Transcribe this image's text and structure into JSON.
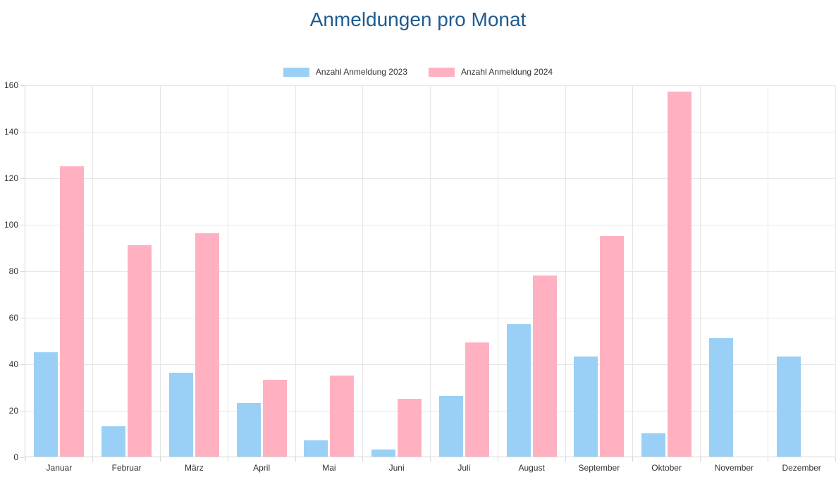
{
  "title": "Anmeldungen pro Monat",
  "title_color": "#1d5c90",
  "legend": {
    "items": [
      {
        "label": "Anzahl Anmeldung 2023",
        "color": "#9AD0F5"
      },
      {
        "label": "Anzahl Anmeldung 2024",
        "color": "#FFB1C1"
      }
    ],
    "position": "top"
  },
  "chart_data": {
    "type": "bar",
    "title": "Anmeldungen pro Monat",
    "categories": [
      "Januar",
      "Februar",
      "März",
      "April",
      "Mai",
      "Juni",
      "Juli",
      "August",
      "September",
      "Oktober",
      "November",
      "Dezember"
    ],
    "series": [
      {
        "name": "Anzahl Anmeldung 2023",
        "color": "#9AD0F5",
        "values": [
          45,
          13,
          36,
          23,
          7,
          3,
          26,
          57,
          43,
          10,
          51,
          43
        ]
      },
      {
        "name": "Anzahl Anmeldung 2024",
        "color": "#FFB1C1",
        "values": [
          125,
          91,
          96,
          33,
          35,
          25,
          49,
          78,
          95,
          157,
          0,
          0
        ]
      }
    ],
    "xlabel": "",
    "ylabel": "",
    "ylim": [
      0,
      160
    ],
    "ytick_step": 20,
    "yticks": [
      0,
      20,
      40,
      60,
      80,
      100,
      120,
      140,
      160
    ],
    "grid": true,
    "legend_position": "top"
  }
}
